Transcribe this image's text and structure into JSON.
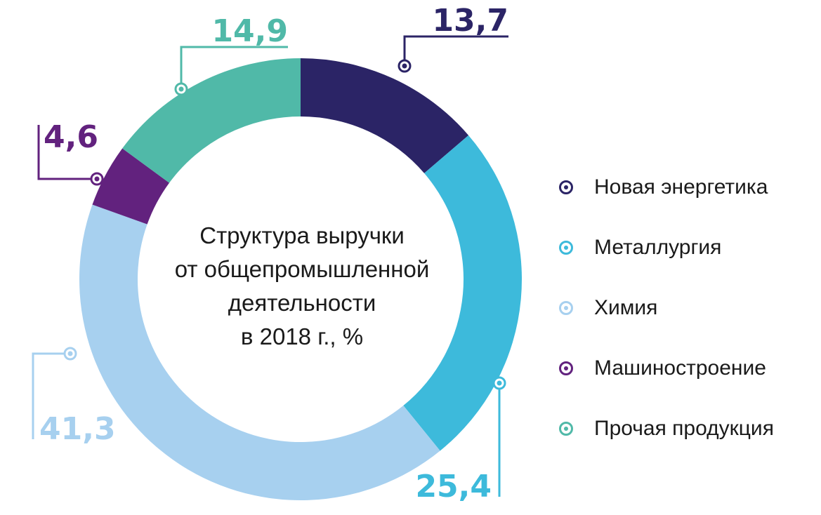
{
  "chart_data": {
    "type": "pie",
    "title": "Структура выручки от общепромышленной деятельности в 2018 г., %",
    "title_lines": [
      "Структура выручки",
      "от общепромышленной",
      "деятельности",
      "в 2018 г., %"
    ],
    "categories": [
      "Новая энергетика",
      "Металлургия",
      "Химия",
      "Машиностроение",
      "Прочая продукция"
    ],
    "values": [
      13.7,
      25.4,
      41.3,
      4.6,
      14.9
    ],
    "value_labels": [
      "13,7",
      "25,4",
      "41,3",
      "4,6",
      "14,9"
    ],
    "colors": [
      "#2b2466",
      "#3dbadb",
      "#a7d0ef",
      "#62227e",
      "#50b9a8"
    ],
    "donut": true,
    "legend_position": "right"
  }
}
